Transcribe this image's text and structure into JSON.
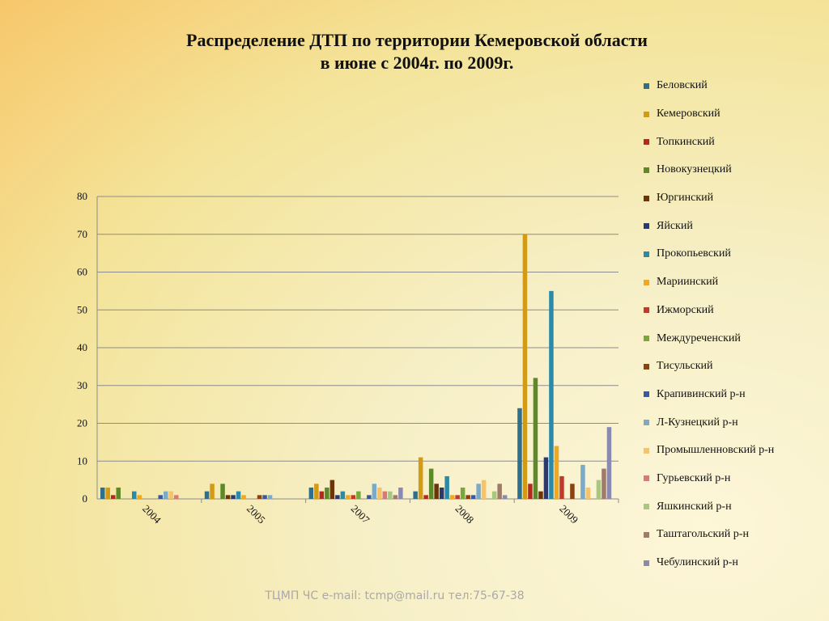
{
  "chart_data": {
    "type": "bar",
    "title": "Распределение ДТП по территории Кемеровской области\nв июне с 2004г. по 2009г.",
    "categories": [
      "2004",
      "2005",
      "2007",
      "2008",
      "2009"
    ],
    "ylim": [
      0,
      80
    ],
    "yticks": [
      0,
      10,
      20,
      30,
      40,
      50,
      60,
      70,
      80
    ],
    "grid": true,
    "legend_position": "right",
    "series": [
      {
        "name": "Беловский",
        "color": "#2e6f8e",
        "values": [
          3,
          2,
          3,
          2,
          24
        ]
      },
      {
        "name": "Кемеровский",
        "color": "#d39a16",
        "values": [
          3,
          4,
          4,
          11,
          70
        ]
      },
      {
        "name": "Топкинский",
        "color": "#b12a1e",
        "values": [
          1,
          0,
          2,
          1,
          4
        ]
      },
      {
        "name": "Новокузнецкий",
        "color": "#5c8a28",
        "values": [
          3,
          4,
          3,
          8,
          32
        ]
      },
      {
        "name": "Юргинский",
        "color": "#6b3508",
        "values": [
          0,
          1,
          5,
          4,
          2
        ]
      },
      {
        "name": "Яйский",
        "color": "#2b3a6b",
        "values": [
          0,
          1,
          1,
          3,
          11
        ]
      },
      {
        "name": "Прокопьевский",
        "color": "#2a8aa8",
        "values": [
          2,
          2,
          2,
          6,
          55
        ]
      },
      {
        "name": "Мариинский",
        "color": "#f0a820",
        "values": [
          1,
          1,
          1,
          1,
          14
        ]
      },
      {
        "name": "Ижморский",
        "color": "#c03a2b",
        "values": [
          0,
          0,
          1,
          1,
          6
        ]
      },
      {
        "name": "Междуреченский",
        "color": "#76a83a",
        "values": [
          0,
          0,
          2,
          3,
          0
        ]
      },
      {
        "name": "Тисульский",
        "color": "#8a4210",
        "values": [
          0,
          1,
          0,
          1,
          4
        ]
      },
      {
        "name": "Крапивинский р-н",
        "color": "#3d5a98",
        "values": [
          1,
          1,
          1,
          1,
          0
        ]
      },
      {
        "name": "Л-Кузнецкий р-н",
        "color": "#7aaac8",
        "values": [
          2,
          1,
          4,
          4,
          9
        ]
      },
      {
        "name": "Промышленновский р-н",
        "color": "#f6c36a",
        "values": [
          2,
          0,
          3,
          5,
          3
        ]
      },
      {
        "name": "Гурьевский р-н",
        "color": "#d8787a",
        "values": [
          1,
          0,
          2,
          0,
          0
        ]
      },
      {
        "name": "Яшкинский р-н",
        "color": "#a8c880",
        "values": [
          0,
          0,
          2,
          2,
          5
        ]
      },
      {
        "name": "Таштагольский р-н",
        "color": "#a07a6a",
        "values": [
          0,
          0,
          1,
          4,
          8
        ]
      },
      {
        "name": "Чебулинский р-н",
        "color": "#8a8ab0",
        "values": [
          0,
          0,
          3,
          1,
          19
        ]
      }
    ]
  },
  "footer": "ТЦМП ЧС e-mail: tcmp@mail.ru тел:75-67-38"
}
